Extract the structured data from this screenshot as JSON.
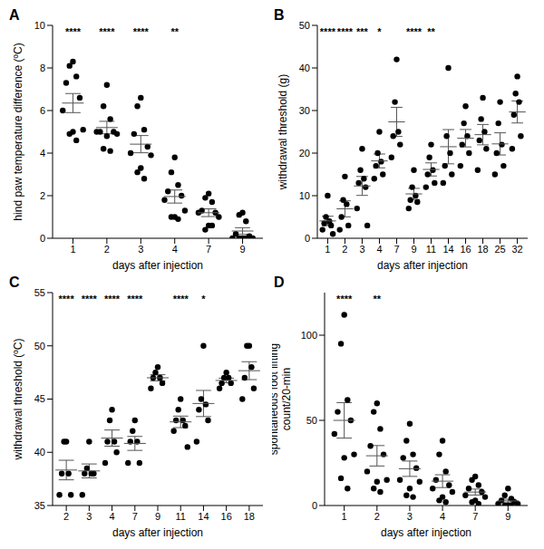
{
  "chart_data": [
    {
      "panel": "A",
      "type": "scatter",
      "color": "#000000",
      "marker": "circle",
      "x_label": "days after injection",
      "y_label": [
        "hind paw temperature difference (ºC)"
      ],
      "categories": [
        "1",
        "2",
        "3",
        "4",
        "7",
        "9"
      ],
      "values": [
        [
          8.3,
          8.1,
          7.6,
          7.3,
          6.6,
          6.0,
          5.1,
          5.0,
          4.9,
          4.6
        ],
        [
          7.2,
          6.2,
          5.6,
          5.0,
          5.0,
          5.0,
          4.9,
          4.8,
          4.2,
          4.1
        ],
        [
          6.6,
          6.2,
          5.1,
          4.9,
          4.3,
          4.0,
          3.9,
          3.3,
          3.1,
          2.8
        ],
        [
          3.8,
          3.1,
          2.5,
          2.2,
          2.0,
          1.8,
          1.3,
          1.0,
          1.0,
          0.9
        ],
        [
          2.1,
          1.9,
          1.7,
          1.3,
          1.2,
          1.2,
          1.0,
          0.6,
          0.4,
          0.6
        ],
        [
          1.2,
          1.1,
          0.8,
          0.2,
          0.1,
          0.0,
          0.0,
          0.0,
          0.0,
          0.0
        ]
      ],
      "significance": [
        "****",
        "****",
        "****",
        "**",
        null,
        null
      ],
      "ylim": [
        0,
        10
      ],
      "yticks": [
        0,
        2,
        4,
        6,
        8,
        10
      ]
    },
    {
      "panel": "B",
      "type": "scatter",
      "color": "#000000",
      "marker": "circle",
      "x_label": "days after injection",
      "y_label": [
        "withdrawal threshold (g)"
      ],
      "categories": [
        "1",
        "2",
        "3",
        "4",
        "7",
        "9",
        "11",
        "14",
        "16",
        "18",
        "25",
        "32"
      ],
      "values": [
        [
          10,
          5,
          4,
          3.5,
          3,
          2,
          1
        ],
        [
          14.5,
          9,
          8,
          5,
          3,
          2
        ],
        [
          21,
          16,
          14,
          13,
          12,
          7,
          3
        ],
        [
          25,
          20,
          18,
          17,
          15,
          14
        ],
        [
          42,
          32,
          25,
          24,
          22,
          19
        ],
        [
          16,
          12,
          10,
          9,
          8.5,
          7
        ],
        [
          22,
          19,
          16,
          15,
          13,
          12
        ],
        [
          40,
          24,
          20,
          17,
          15,
          13
        ],
        [
          31,
          27,
          24,
          22,
          20,
          17
        ],
        [
          33,
          28,
          25,
          23,
          21,
          16
        ],
        [
          32,
          27,
          22,
          20,
          17,
          15
        ],
        [
          38,
          34,
          32,
          29,
          24,
          21
        ]
      ],
      "significance": [
        "****",
        "****",
        "***",
        "*",
        null,
        "****",
        "**",
        null,
        null,
        null,
        null,
        null
      ],
      "ylim": [
        0,
        50
      ],
      "yticks": [
        0,
        10,
        20,
        30,
        40,
        50
      ]
    },
    {
      "panel": "C",
      "type": "scatter",
      "color": "#000000",
      "marker": "circle",
      "x_label": "days after injection",
      "y_label": [
        "withdrawal threshold (ºC)"
      ],
      "categories": [
        "2",
        "3",
        "4",
        "7",
        "9",
        "11",
        "14",
        "16",
        "18"
      ],
      "values": [
        [
          41,
          41,
          38,
          38,
          36,
          36
        ],
        [
          41,
          38.5,
          38,
          38,
          38,
          36
        ],
        [
          44,
          43,
          41,
          41,
          40,
          39
        ],
        [
          43,
          42,
          41,
          41,
          39,
          39
        ],
        [
          48,
          47.5,
          47,
          47,
          46.5,
          46
        ],
        [
          45,
          44,
          43,
          43,
          42.5,
          42,
          40.5
        ],
        [
          50,
          45,
          44.5,
          44,
          43,
          41
        ],
        [
          47.5,
          47,
          47,
          46.5,
          46.5,
          46
        ],
        [
          50,
          50,
          48,
          47,
          46,
          45
        ]
      ],
      "significance": [
        "****",
        "****",
        "****",
        "****",
        null,
        "****",
        "*",
        null,
        null
      ],
      "ylim": [
        35,
        55
      ],
      "yticks": [
        35,
        40,
        45,
        50,
        55
      ]
    },
    {
      "panel": "D",
      "type": "scatter",
      "color": "#000000",
      "marker": "circle",
      "x_label": "days after injection",
      "y_label": [
        "spontaneous foot lifting",
        "count/20-min"
      ],
      "categories": [
        "1",
        "2",
        "3",
        "4",
        "7",
        "9"
      ],
      "values": [
        [
          112,
          95,
          62,
          55,
          50,
          42,
          30,
          28,
          16,
          10
        ],
        [
          60,
          55,
          45,
          35,
          30,
          20,
          15,
          14,
          10,
          8
        ],
        [
          48,
          38,
          30,
          28,
          22,
          15,
          14,
          10,
          6,
          5
        ],
        [
          38,
          30,
          20,
          15,
          12,
          10,
          8,
          5,
          3,
          2
        ],
        [
          17,
          15,
          12,
          10,
          8,
          6,
          5,
          3,
          2,
          1
        ],
        [
          10,
          6,
          4,
          3,
          2,
          1,
          1,
          0,
          0,
          0
        ]
      ],
      "significance": [
        "****",
        "**",
        null,
        null,
        null,
        null
      ],
      "ylim": [
        0,
        125
      ],
      "yticks": [
        0,
        50,
        100
      ]
    }
  ]
}
